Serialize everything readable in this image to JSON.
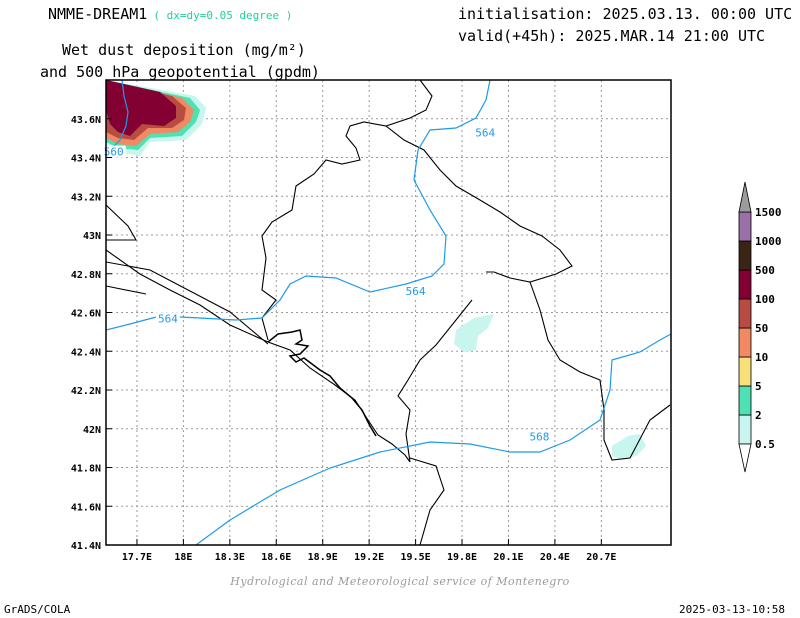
{
  "header": {
    "model": "NMME-DREAM1",
    "resolution": "( dx=dy=0.05 degree )",
    "init": "initialisation: 2025.03.13. 00:00 UTC",
    "valid": "valid(+45h): 2025.MAR.14 21:00 UTC",
    "variable_line1": "Wet dust deposition (mg/m²)",
    "variable_line2": "and 500 hPa geopotential (gpdm)"
  },
  "credit": "Hydrological and Meteorological service of Montenegro",
  "footer": {
    "left": "GrADS/COLA",
    "right": "2025-03-13-10:58"
  },
  "map": {
    "lon_range": [
      17.5,
      21.15
    ],
    "lat_range": [
      41.4,
      43.8
    ],
    "lon_ticks": [
      {
        "value": 17.7,
        "label": "17.7E"
      },
      {
        "value": 18.0,
        "label": "18E"
      },
      {
        "value": 18.3,
        "label": "18.3E"
      },
      {
        "value": 18.6,
        "label": "18.6E"
      },
      {
        "value": 18.9,
        "label": "18.9E"
      },
      {
        "value": 19.2,
        "label": "19.2E"
      },
      {
        "value": 19.5,
        "label": "19.5E"
      },
      {
        "value": 19.8,
        "label": "19.8E"
      },
      {
        "value": 20.1,
        "label": "20.1E"
      },
      {
        "value": 20.4,
        "label": "20.4E"
      },
      {
        "value": 20.7,
        "label": "20.7E"
      }
    ],
    "lat_ticks": [
      {
        "value": 41.4,
        "label": "41.4N"
      },
      {
        "value": 41.6,
        "label": "41.6N"
      },
      {
        "value": 41.8,
        "label": "41.8N"
      },
      {
        "value": 42.0,
        "label": "42N"
      },
      {
        "value": 42.2,
        "label": "42.2N"
      },
      {
        "value": 42.4,
        "label": "42.4N"
      },
      {
        "value": 42.6,
        "label": "42.6N"
      },
      {
        "value": 42.8,
        "label": "42.8N"
      },
      {
        "value": 43.0,
        "label": "43N"
      },
      {
        "value": 43.2,
        "label": "43.2N"
      },
      {
        "value": 43.4,
        "label": "43.4N"
      },
      {
        "value": 43.6,
        "label": "43.6N"
      }
    ],
    "grid": true,
    "contour_color": "#1e9be8",
    "contour_labels": [
      {
        "text": "560",
        "lon": 17.55,
        "lat": 43.42
      },
      {
        "text": "564",
        "lon": 19.95,
        "lat": 43.52
      },
      {
        "text": "564",
        "lon": 19.5,
        "lat": 42.7
      },
      {
        "text": "564",
        "lon": 17.9,
        "lat": 42.56
      },
      {
        "text": "568",
        "lon": 20.3,
        "lat": 41.95
      }
    ]
  },
  "colorbar": {
    "levels": [
      {
        "label": "0.5",
        "color": "#c8f5ee"
      },
      {
        "label": "2",
        "color": "#4fe0b3"
      },
      {
        "label": "5",
        "color": "#f7e07a"
      },
      {
        "label": "10",
        "color": "#f08a62"
      },
      {
        "label": "50",
        "color": "#b84c42"
      },
      {
        "label": "100",
        "color": "#820032"
      },
      {
        "label": "500",
        "color": "#3a2416"
      },
      {
        "label": "1000",
        "color": "#9a70a8"
      },
      {
        "label": "1500",
        "color": "#9c9c9c"
      }
    ]
  }
}
